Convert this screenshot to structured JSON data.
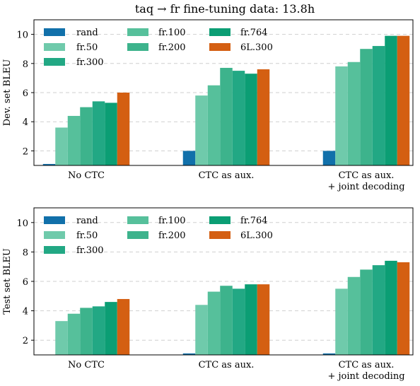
{
  "figure_title": "taq → fr fine-tuning data: 13.8h",
  "colors": {
    "rand": "#1170aa",
    "fr.50": "#6fcaab",
    "fr.100": "#56c09b",
    "fr.200": "#3db38c",
    "fr.300": "#22a884",
    "fr.764": "#0b9e74",
    "6L.300": "#d45f12"
  },
  "chart_data": [
    {
      "type": "bar",
      "title": "taq → fr fine-tuning data: 13.8h",
      "ylabel": "Dev. set BLEU",
      "xlabel": "",
      "ylim": [
        1,
        11
      ],
      "yticks": [
        "2",
        "4",
        "6",
        "8",
        "10"
      ],
      "grid": true,
      "legend": "top-left",
      "categories": [
        "No CTC",
        "CTC as aux.",
        "CTC as aux.\n+ joint decoding"
      ],
      "series": [
        {
          "name": "rand",
          "values": [
            1.1,
            2.0,
            2.0
          ]
        },
        {
          "name": "fr.50",
          "values": [
            3.6,
            5.8,
            7.8
          ]
        },
        {
          "name": "fr.100",
          "values": [
            4.4,
            6.5,
            8.1
          ]
        },
        {
          "name": "fr.200",
          "values": [
            5.0,
            7.7,
            9.0
          ]
        },
        {
          "name": "fr.300",
          "values": [
            5.4,
            7.5,
            9.2
          ]
        },
        {
          "name": "fr.764",
          "values": [
            5.3,
            7.3,
            9.9
          ]
        },
        {
          "name": "6L.300",
          "values": [
            6.0,
            7.6,
            9.9
          ]
        }
      ]
    },
    {
      "type": "bar",
      "title": "",
      "ylabel": "Test set BLEU",
      "xlabel": "",
      "ylim": [
        1,
        11
      ],
      "yticks": [
        "2",
        "4",
        "6",
        "8",
        "10"
      ],
      "grid": true,
      "legend": "top-left",
      "categories": [
        "No CTC",
        "CTC as aux.",
        "CTC as aux.\n+ joint decoding"
      ],
      "series": [
        {
          "name": "rand",
          "values": [
            1.0,
            1.1,
            1.1
          ]
        },
        {
          "name": "fr.50",
          "values": [
            3.3,
            4.4,
            5.5
          ]
        },
        {
          "name": "fr.100",
          "values": [
            3.8,
            5.3,
            6.3
          ]
        },
        {
          "name": "fr.200",
          "values": [
            4.2,
            5.7,
            6.8
          ]
        },
        {
          "name": "fr.300",
          "values": [
            4.3,
            5.5,
            7.1
          ]
        },
        {
          "name": "fr.764",
          "values": [
            4.6,
            5.8,
            7.4
          ]
        },
        {
          "name": "6L.300",
          "values": [
            4.8,
            5.8,
            7.3
          ]
        }
      ]
    }
  ]
}
